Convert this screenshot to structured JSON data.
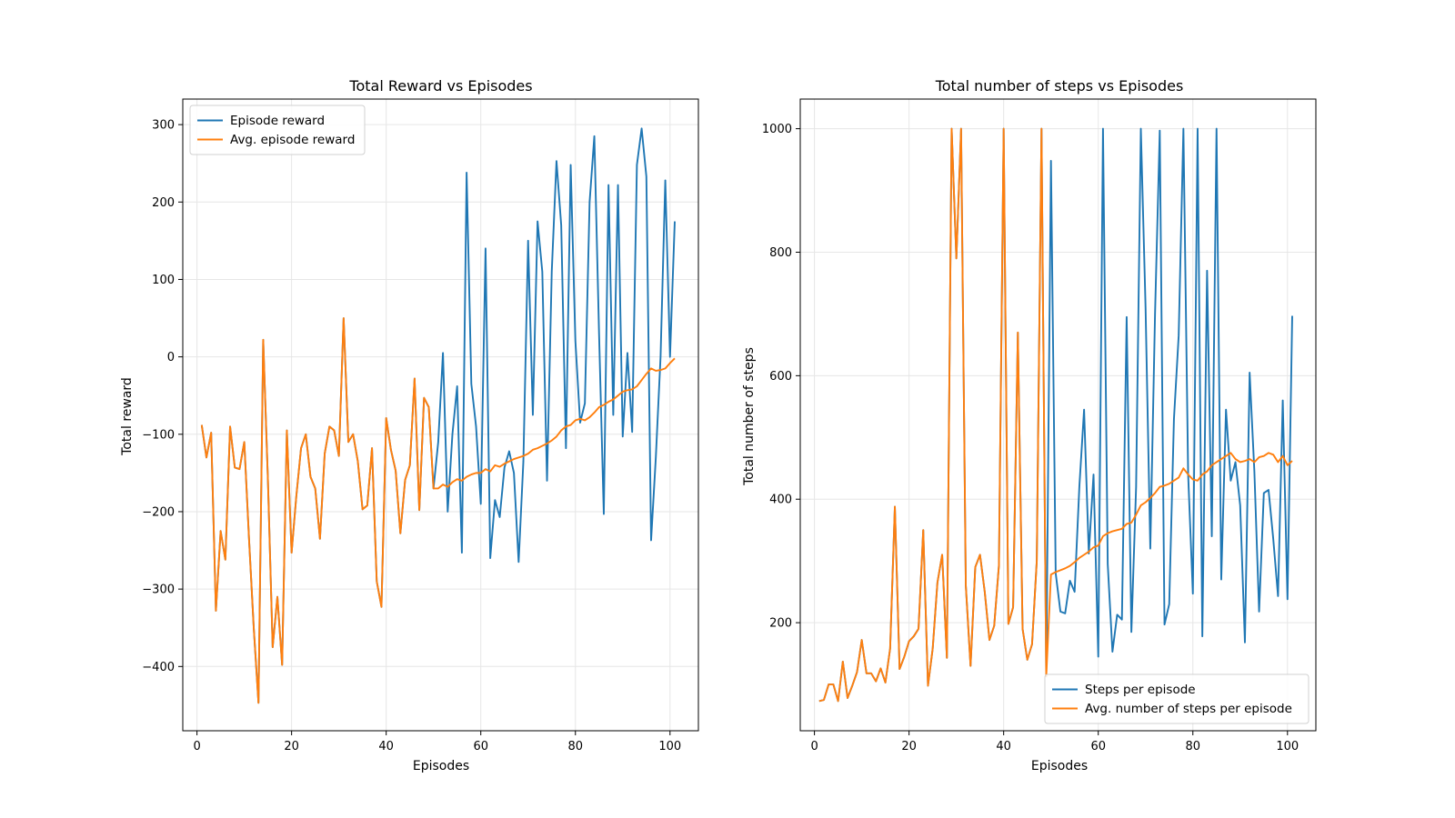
{
  "chart_data": [
    {
      "type": "line",
      "title": "Total Reward vs Episodes",
      "xlabel": "Episodes",
      "ylabel": "Total reward",
      "xlim": [
        -3,
        106
      ],
      "ylim": [
        -483,
        333
      ],
      "xticks": [
        0,
        20,
        40,
        60,
        80,
        100
      ],
      "yticks": [
        -400,
        -300,
        -200,
        -100,
        0,
        100,
        200,
        300
      ],
      "ytick_labels": [
        "−400",
        "−300",
        "−200",
        "−100",
        "0",
        "100",
        "200",
        "300"
      ],
      "grid": true,
      "legend_position": "upper-left",
      "series": [
        {
          "name": "Episode reward",
          "color": "#1f77b4",
          "x": [
            1,
            2,
            3,
            4,
            5,
            6,
            7,
            8,
            9,
            10,
            11,
            12,
            13,
            14,
            15,
            16,
            17,
            18,
            19,
            20,
            21,
            22,
            23,
            24,
            25,
            26,
            27,
            28,
            29,
            30,
            31,
            32,
            33,
            34,
            35,
            36,
            37,
            38,
            39,
            40,
            41,
            42,
            43,
            44,
            45,
            46,
            47,
            48,
            49,
            50,
            51,
            52,
            53,
            54,
            55,
            56,
            57,
            58,
            59,
            60,
            61,
            62,
            63,
            64,
            65,
            66,
            67,
            68,
            69,
            70,
            71,
            72,
            73,
            74,
            75,
            76,
            77,
            78,
            79,
            80,
            81,
            82,
            83,
            84,
            85,
            86,
            87,
            88,
            89,
            90,
            91,
            92,
            93,
            94,
            95,
            96,
            97,
            98,
            99,
            100,
            101
          ],
          "values": [
            -88,
            -130,
            -98,
            -328,
            -225,
            -262,
            -90,
            -143,
            -145,
            -110,
            -235,
            -350,
            -447,
            22,
            -160,
            -375,
            -310,
            -398,
            -95,
            -253,
            -180,
            -118,
            -100,
            -155,
            -170,
            -235,
            -125,
            -90,
            -95,
            -128,
            50,
            -110,
            -100,
            -135,
            -197,
            -192,
            -118,
            -290,
            -323,
            -79,
            -120,
            -147,
            -228,
            -159,
            -140,
            -28,
            -198,
            -53,
            -65,
            -170,
            -110,
            5,
            -200,
            -100,
            -38,
            -253,
            238,
            -35,
            -90,
            -190,
            140,
            -260,
            -185,
            -207,
            -143,
            -122,
            -150,
            -265,
            -135,
            150,
            -75,
            175,
            110,
            -160,
            110,
            253,
            170,
            -118,
            248,
            20,
            -85,
            -60,
            200,
            285,
            30,
            -203,
            222,
            -75,
            222,
            -103,
            5,
            -97,
            248,
            295,
            233,
            -237,
            -130,
            0,
            228,
            0,
            175
          ]
        },
        {
          "name": "Avg. episode reward",
          "color": "#ff7f0e",
          "x": [
            1,
            2,
            3,
            4,
            5,
            6,
            7,
            8,
            9,
            10,
            11,
            12,
            13,
            14,
            15,
            16,
            17,
            18,
            19,
            20,
            21,
            22,
            23,
            24,
            25,
            26,
            27,
            28,
            29,
            30,
            31,
            32,
            33,
            34,
            35,
            36,
            37,
            38,
            39,
            40,
            41,
            42,
            43,
            44,
            45,
            46,
            47,
            48,
            49,
            50,
            51,
            52,
            53,
            54,
            55,
            56,
            57,
            58,
            59,
            60,
            61,
            62,
            63,
            64,
            65,
            66,
            67,
            68,
            69,
            70,
            71,
            72,
            73,
            74,
            75,
            76,
            77,
            78,
            79,
            80,
            81,
            82,
            83,
            84,
            85,
            86,
            87,
            88,
            89,
            90,
            91,
            92,
            93,
            94,
            95,
            96,
            97,
            98,
            99,
            100,
            101
          ],
          "values": [
            -88,
            -130,
            -98,
            -328,
            -225,
            -262,
            -90,
            -143,
            -145,
            -110,
            -235,
            -350,
            -447,
            22,
            -160,
            -375,
            -310,
            -398,
            -95,
            -253,
            -180,
            -118,
            -100,
            -155,
            -170,
            -235,
            -125,
            -90,
            -95,
            -128,
            50,
            -110,
            -100,
            -135,
            -197,
            -192,
            -118,
            -290,
            -323,
            -79,
            -120,
            -147,
            -228,
            -159,
            -140,
            -28,
            -198,
            -53,
            -65,
            -170,
            -170,
            -165,
            -168,
            -162,
            -158,
            -160,
            -155,
            -152,
            -150,
            -150,
            -145,
            -148,
            -140,
            -142,
            -138,
            -135,
            -132,
            -130,
            -128,
            -125,
            -120,
            -118,
            -115,
            -112,
            -108,
            -103,
            -95,
            -90,
            -88,
            -82,
            -80,
            -82,
            -78,
            -72,
            -65,
            -62,
            -58,
            -55,
            -50,
            -45,
            -43,
            -42,
            -38,
            -30,
            -22,
            -15,
            -18,
            -17,
            -15,
            -8,
            -2
          ]
        }
      ]
    },
    {
      "type": "line",
      "title": "Total number of steps vs Episodes",
      "xlabel": "Episodes",
      "ylabel": "Total number of steps",
      "xlim": [
        -3,
        106
      ],
      "ylim": [
        25,
        1048
      ],
      "xticks": [
        0,
        20,
        40,
        60,
        80,
        100
      ],
      "yticks": [
        200,
        400,
        600,
        800,
        1000
      ],
      "ytick_labels": [
        "200",
        "400",
        "600",
        "800",
        "1000"
      ],
      "grid": true,
      "legend_position": "lower-right",
      "series": [
        {
          "name": "Steps per episode",
          "color": "#1f77b4",
          "x": [
            1,
            2,
            3,
            4,
            5,
            6,
            7,
            8,
            9,
            10,
            11,
            12,
            13,
            14,
            15,
            16,
            17,
            18,
            19,
            20,
            21,
            22,
            23,
            24,
            25,
            26,
            27,
            28,
            29,
            30,
            31,
            32,
            33,
            34,
            35,
            36,
            37,
            38,
            39,
            40,
            41,
            42,
            43,
            44,
            45,
            46,
            47,
            48,
            49,
            50,
            51,
            52,
            53,
            54,
            55,
            56,
            57,
            58,
            59,
            60,
            61,
            62,
            63,
            64,
            65,
            66,
            67,
            68,
            69,
            70,
            71,
            72,
            73,
            74,
            75,
            76,
            77,
            78,
            79,
            80,
            81,
            82,
            83,
            84,
            85,
            86,
            87,
            88,
            89,
            90,
            91,
            92,
            93,
            94,
            95,
            96,
            97,
            98,
            99,
            100,
            101
          ],
          "values": [
            73,
            75,
            100,
            100,
            73,
            137,
            78,
            98,
            120,
            172,
            118,
            118,
            105,
            126,
            103,
            158,
            388,
            125,
            145,
            170,
            178,
            190,
            350,
            98,
            158,
            265,
            310,
            143,
            1000,
            790,
            1000,
            260,
            130,
            290,
            310,
            250,
            172,
            195,
            293,
            1000,
            198,
            225,
            670,
            190,
            140,
            165,
            300,
            1000,
            113,
            948,
            280,
            218,
            215,
            268,
            250,
            420,
            545,
            312,
            440,
            145,
            1000,
            295,
            153,
            213,
            205,
            695,
            185,
            420,
            1000,
            710,
            320,
            700,
            997,
            197,
            230,
            530,
            665,
            1000,
            440,
            247,
            1000,
            178,
            770,
            340,
            1000,
            270,
            545,
            430,
            460,
            390,
            168,
            605,
            445,
            218,
            410,
            415,
            335,
            243,
            560,
            238,
            697
          ]
        },
        {
          "name": "Avg. number of steps per episode",
          "color": "#ff7f0e",
          "x": [
            1,
            2,
            3,
            4,
            5,
            6,
            7,
            8,
            9,
            10,
            11,
            12,
            13,
            14,
            15,
            16,
            17,
            18,
            19,
            20,
            21,
            22,
            23,
            24,
            25,
            26,
            27,
            28,
            29,
            30,
            31,
            32,
            33,
            34,
            35,
            36,
            37,
            38,
            39,
            40,
            41,
            42,
            43,
            44,
            45,
            46,
            47,
            48,
            49,
            50,
            51,
            52,
            53,
            54,
            55,
            56,
            57,
            58,
            59,
            60,
            61,
            62,
            63,
            64,
            65,
            66,
            67,
            68,
            69,
            70,
            71,
            72,
            73,
            74,
            75,
            76,
            77,
            78,
            79,
            80,
            81,
            82,
            83,
            84,
            85,
            86,
            87,
            88,
            89,
            90,
            91,
            92,
            93,
            94,
            95,
            96,
            97,
            98,
            99,
            100,
            101
          ],
          "values": [
            73,
            75,
            100,
            100,
            73,
            137,
            78,
            98,
            120,
            172,
            118,
            118,
            105,
            126,
            103,
            158,
            388,
            125,
            145,
            170,
            178,
            190,
            350,
            98,
            158,
            265,
            310,
            143,
            1000,
            790,
            1000,
            260,
            130,
            290,
            310,
            250,
            172,
            195,
            293,
            1000,
            198,
            225,
            670,
            190,
            140,
            165,
            300,
            1000,
            113,
            278,
            282,
            285,
            288,
            292,
            298,
            305,
            310,
            315,
            322,
            325,
            340,
            345,
            348,
            350,
            352,
            360,
            362,
            375,
            390,
            395,
            402,
            410,
            420,
            422,
            425,
            430,
            435,
            450,
            440,
            432,
            430,
            440,
            445,
            455,
            460,
            465,
            470,
            475,
            465,
            460,
            462,
            465,
            460,
            468,
            470,
            475,
            472,
            460,
            470,
            455,
            462
          ]
        }
      ]
    }
  ]
}
